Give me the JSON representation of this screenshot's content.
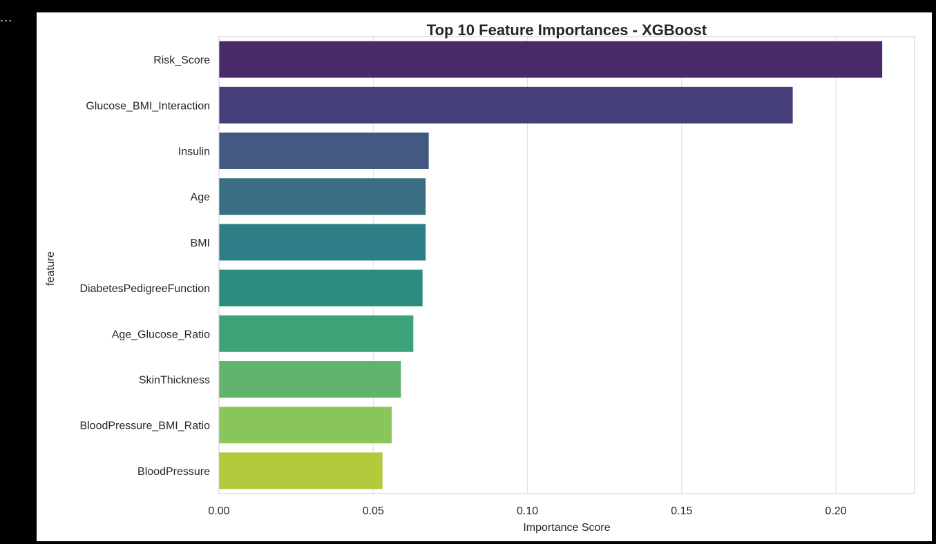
{
  "output_prefix": "...",
  "chart_data": {
    "type": "bar",
    "orientation": "horizontal",
    "title": "Top 10 Feature Importances - XGBoost",
    "xlabel": "Importance Score",
    "ylabel": "feature",
    "xlim": [
      0,
      0.2255
    ],
    "x_ticks": [
      0.0,
      0.05,
      0.1,
      0.15,
      0.2
    ],
    "x_tick_labels": [
      "0.00",
      "0.05",
      "0.10",
      "0.15",
      "0.20"
    ],
    "grid": "x",
    "categories": [
      "Risk_Score",
      "Glucose_BMI_Interaction",
      "Insulin",
      "Age",
      "BMI",
      "DiabetesPedigreeFunction",
      "Age_Glucose_Ratio",
      "SkinThickness",
      "BloodPressure_BMI_Ratio",
      "BloodPressure"
    ],
    "values": [
      0.215,
      0.186,
      0.068,
      0.067,
      0.067,
      0.066,
      0.063,
      0.059,
      0.056,
      0.053
    ],
    "colors": [
      "#482a69",
      "#46407a",
      "#425a82",
      "#3a6e85",
      "#2f7d87",
      "#2a8d80",
      "#3ca277",
      "#62b46d",
      "#8ac55b",
      "#b2c93c"
    ]
  }
}
